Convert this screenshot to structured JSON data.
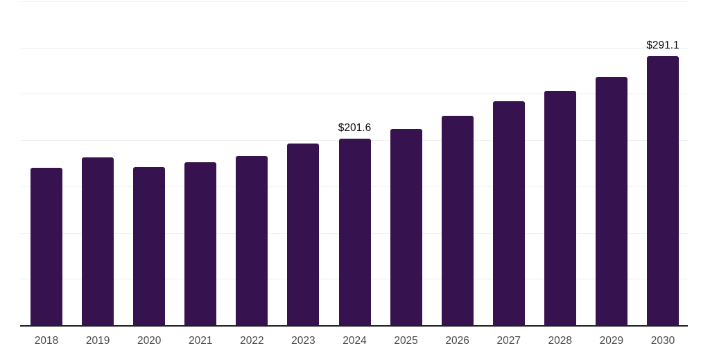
{
  "chart_data": {
    "type": "bar",
    "title": "",
    "xlabel": "",
    "ylabel": "",
    "categories": [
      "2018",
      "2019",
      "2020",
      "2021",
      "2022",
      "2023",
      "2024",
      "2025",
      "2026",
      "2027",
      "2028",
      "2029",
      "2030"
    ],
    "values": [
      170.4,
      181.2,
      171.2,
      176.2,
      182.8,
      196.4,
      201.6,
      212.1,
      226.3,
      241.9,
      253.2,
      268.0,
      291.1
    ],
    "annotations": [
      {
        "category": "2024",
        "text": "$201.6"
      },
      {
        "category": "2030",
        "text": "$291.1"
      }
    ],
    "ylim": [
      0,
      350
    ],
    "gridline_step": 50,
    "grid": true,
    "y_tick_labels_visible": false,
    "legend": false,
    "bar_color": "#36124e",
    "grid_color": "#efefef",
    "axis_line_color": "#1f1f1f",
    "tick_label_color": "#4a4a4a",
    "value_label_color": "#0d0d0d",
    "background_color": "#ffffff"
  }
}
